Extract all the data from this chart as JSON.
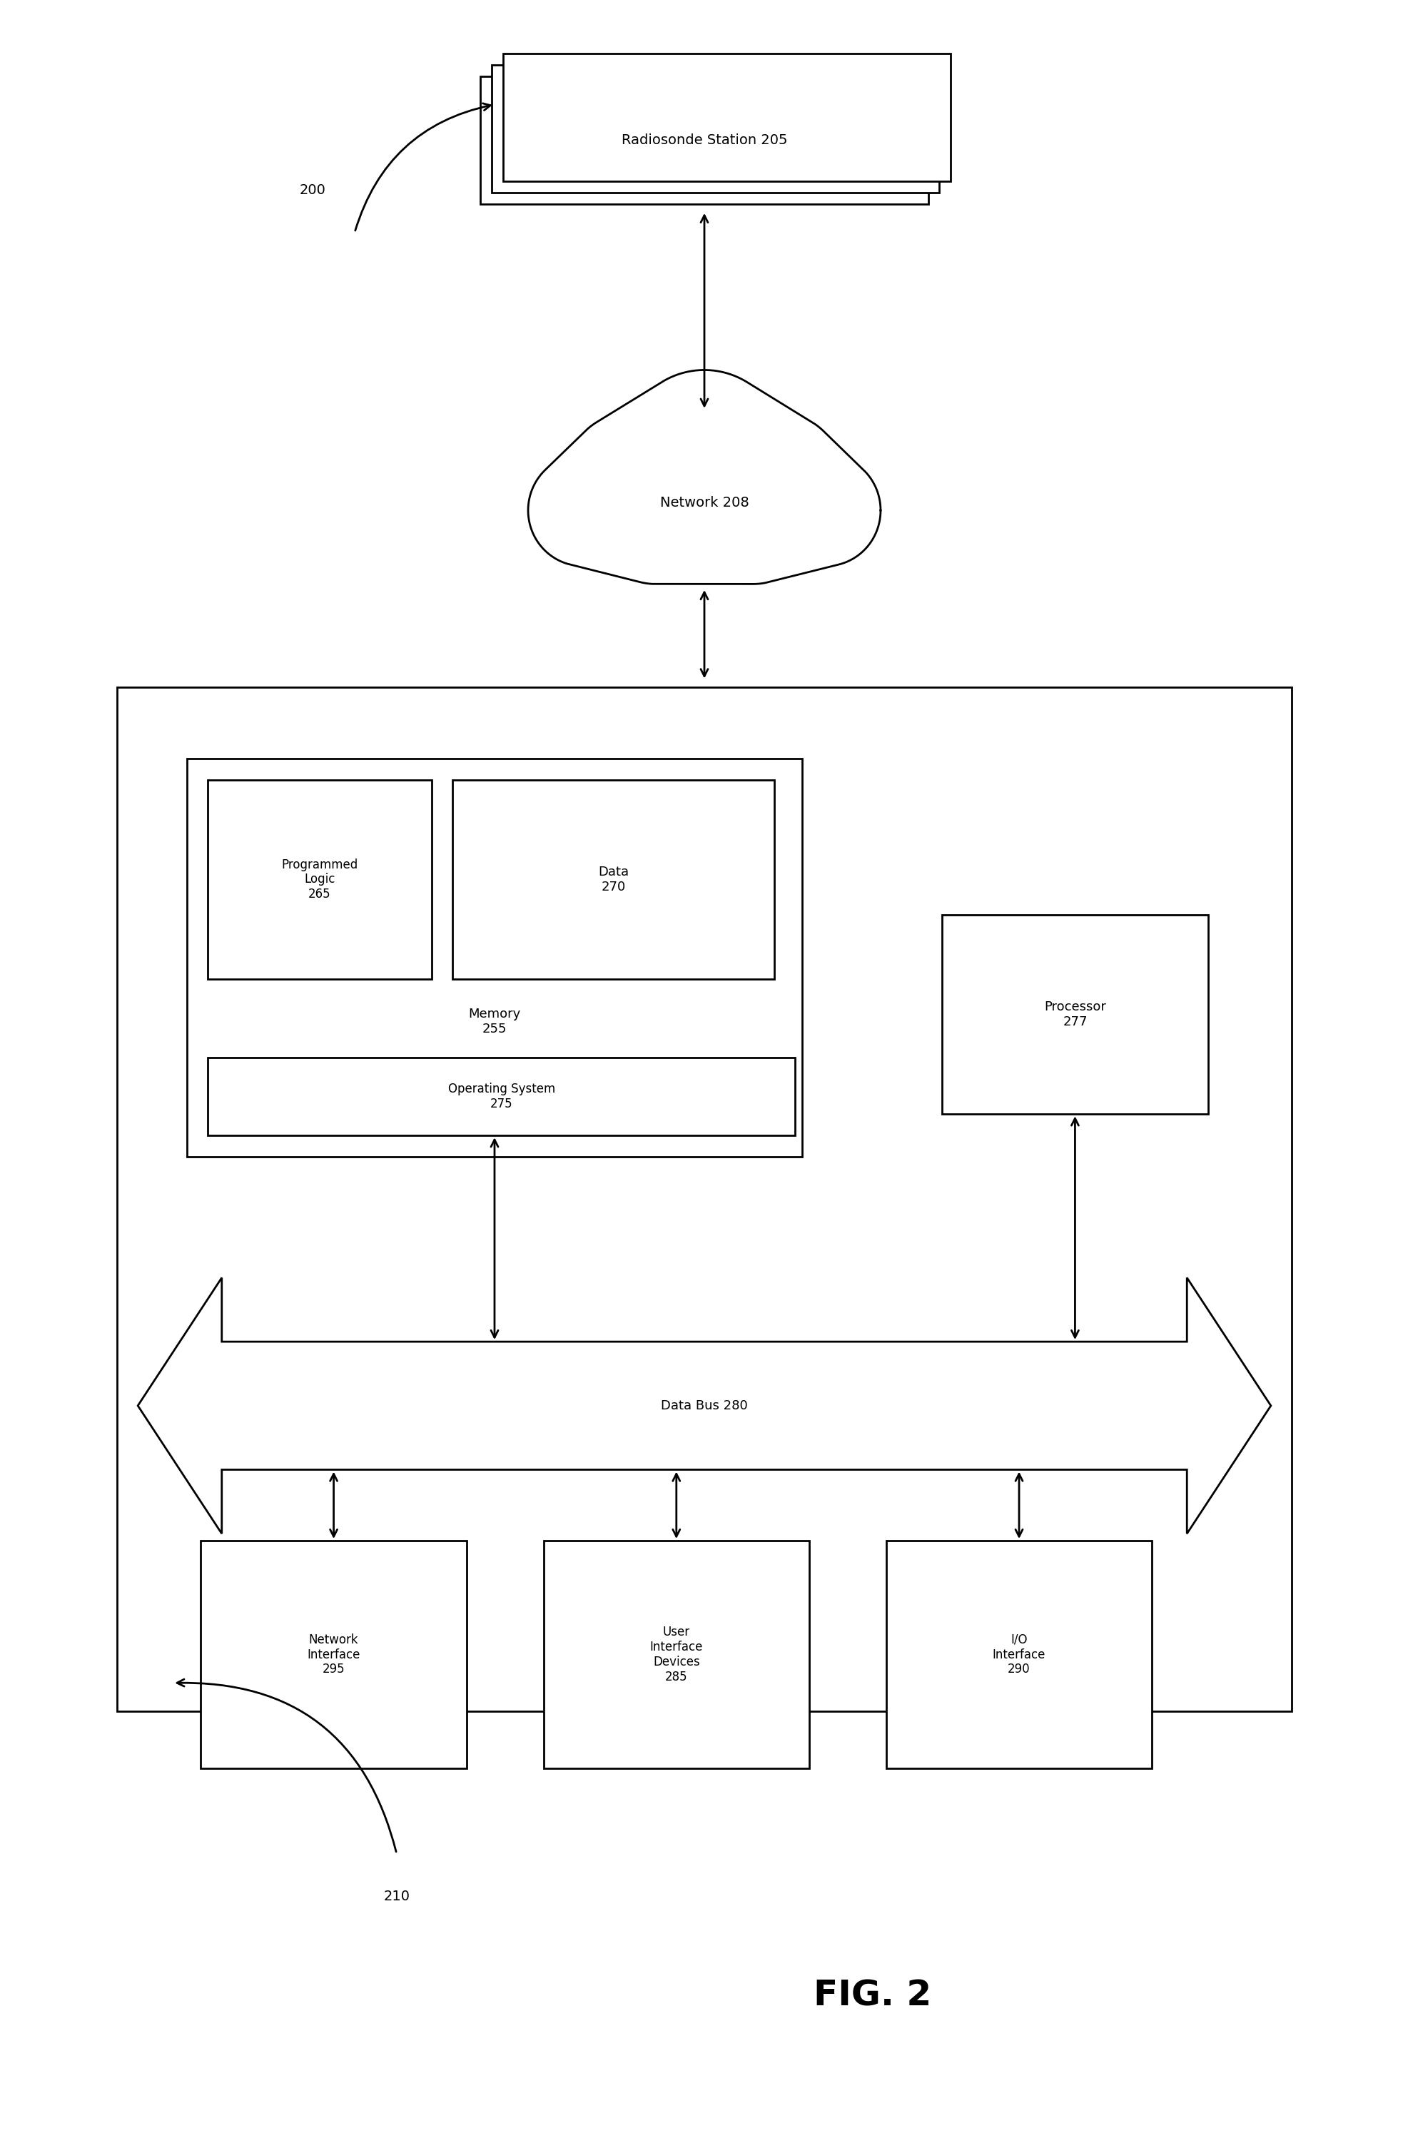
{
  "bg_color": "#ffffff",
  "line_color": "#000000",
  "fig_width": 19.74,
  "fig_height": 30.03,
  "label_200": "200",
  "label_210": "210",
  "radiosonde_label": "Radiosonde Station 205",
  "network_label": "Network 208",
  "memory_label": "Memory\n255",
  "prog_logic_label": "Programmed\nLogic\n265",
  "data_label": "Data\n270",
  "os_label": "Operating System\n275",
  "processor_label": "Processor\n277",
  "databus_label": "Data Bus 280",
  "net_iface_label": "Network\nInterface\n295",
  "user_iface_label": "User\nInterface\nDevices\n285",
  "io_iface_label": "I/O\nInterface\n290",
  "fig2_label": "FIG. 2"
}
